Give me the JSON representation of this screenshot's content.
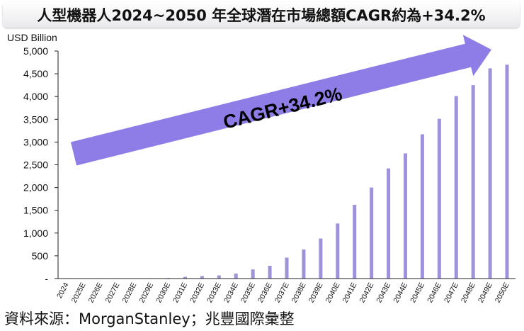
{
  "header": {
    "title": "人型機器人2024~2050 年全球潛在市場總額CAGR約為+34.2%"
  },
  "footer": {
    "source": "資料來源：MorganStanley；兆豐國際彙整"
  },
  "colors": {
    "bar": "#9c93d8",
    "arrow": "#8e7de6",
    "axis": "#222222"
  },
  "chart_data": {
    "type": "bar",
    "title": "人型機器人2024~2050 年全球潛在市場總額CAGR約為+34.2%",
    "ylabel": "USD Billion",
    "xlabel": "",
    "ylim": [
      0,
      5000
    ],
    "yticks": [
      0,
      500,
      1000,
      1500,
      2000,
      2500,
      3000,
      3500,
      4000,
      4500,
      5000
    ],
    "ytick_labels": [
      "-",
      "500",
      "1,000",
      "1,500",
      "2,000",
      "2,500",
      "3,000",
      "3,500",
      "4,000",
      "4,500",
      "5,000"
    ],
    "categories": [
      "2024",
      "2025E",
      "2026E",
      "2027E",
      "2028E",
      "2029E",
      "2030E",
      "2031E",
      "2032E",
      "2033E",
      "2034E",
      "2035E",
      "2036E",
      "2037E",
      "2038E",
      "2039E",
      "2040E",
      "2041E",
      "2042E",
      "2043E",
      "2044E",
      "2045E",
      "2046E",
      "2047E",
      "2048E",
      "2049E",
      "2050E"
    ],
    "values": [
      0,
      0,
      1,
      2,
      4,
      8,
      14,
      38,
      55,
      70,
      110,
      200,
      280,
      460,
      640,
      880,
      1210,
      1620,
      2000,
      2420,
      2750,
      3170,
      3510,
      4010,
      4250,
      4620,
      4700
    ],
    "annotation": "CAGR+34.2%",
    "grid": false
  }
}
